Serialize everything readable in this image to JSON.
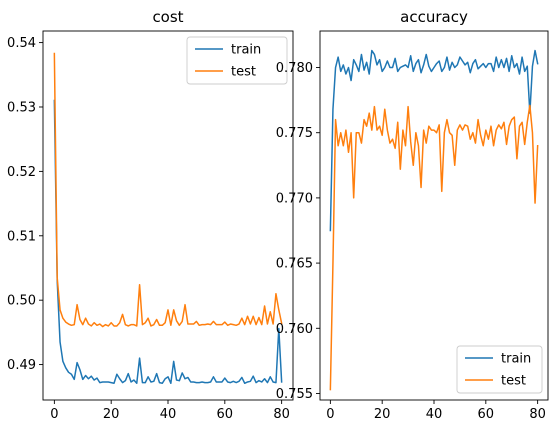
{
  "chart_data": [
    {
      "type": "line",
      "title": "cost",
      "xlabel": "",
      "ylabel": "",
      "xlim": [
        -4,
        84
      ],
      "ylim": [
        0.4845,
        0.5418
      ],
      "xticks": [
        "0",
        "20",
        "40",
        "60",
        "80"
      ],
      "yticks": [
        "0.49",
        "0.50",
        "0.51",
        "0.52",
        "0.53",
        "0.54"
      ],
      "legend": "top-right",
      "x_start": 0,
      "series": [
        {
          "name": "train",
          "color": "#1f77b4",
          "values": [
            0.531,
            0.503,
            0.4935,
            0.4905,
            0.4895,
            0.4888,
            0.4885,
            0.4877,
            0.4903,
            0.4892,
            0.4877,
            0.4883,
            0.4878,
            0.4882,
            0.4876,
            0.4879,
            0.4872,
            0.4873,
            0.4873,
            0.4873,
            0.4872,
            0.4871,
            0.4885,
            0.4878,
            0.4872,
            0.4875,
            0.4886,
            0.4873,
            0.4876,
            0.4871,
            0.491,
            0.4872,
            0.4872,
            0.4881,
            0.4873,
            0.4874,
            0.4886,
            0.4872,
            0.4871,
            0.4878,
            0.4881,
            0.4871,
            0.4905,
            0.4876,
            0.4875,
            0.4887,
            0.4878,
            0.488,
            0.4873,
            0.4873,
            0.4872,
            0.4872,
            0.4873,
            0.4872,
            0.4872,
            0.4873,
            0.4881,
            0.4873,
            0.4873,
            0.4873,
            0.4879,
            0.4873,
            0.4872,
            0.4874,
            0.4872,
            0.4874,
            0.488,
            0.4871,
            0.4873,
            0.4874,
            0.4882,
            0.4872,
            0.4875,
            0.4873,
            0.4878,
            0.4872,
            0.4881,
            0.4873,
            0.4872,
            0.4956,
            0.4873
          ]
        },
        {
          "name": "test",
          "color": "#ff7f0e",
          "values": [
            0.5383,
            0.5035,
            0.4985,
            0.4972,
            0.4966,
            0.4963,
            0.4961,
            0.4962,
            0.4993,
            0.497,
            0.4962,
            0.4972,
            0.4963,
            0.496,
            0.4965,
            0.4961,
            0.4963,
            0.4959,
            0.4962,
            0.496,
            0.4965,
            0.496,
            0.496,
            0.4965,
            0.4978,
            0.4962,
            0.496,
            0.4962,
            0.4962,
            0.496,
            0.5024,
            0.4962,
            0.4965,
            0.4972,
            0.496,
            0.4962,
            0.497,
            0.4961,
            0.4961,
            0.4965,
            0.4985,
            0.4961,
            0.4985,
            0.4968,
            0.4961,
            0.4967,
            0.4993,
            0.4963,
            0.4963,
            0.4963,
            0.4967,
            0.4961,
            0.4962,
            0.4962,
            0.4963,
            0.4962,
            0.4967,
            0.4962,
            0.4962,
            0.4962,
            0.4966,
            0.4961,
            0.4963,
            0.4962,
            0.4961,
            0.4963,
            0.4972,
            0.4962,
            0.4975,
            0.4963,
            0.4975,
            0.4962,
            0.4973,
            0.4962,
            0.4991,
            0.4963,
            0.4982,
            0.4963,
            0.501,
            0.4985,
            0.4964
          ]
        }
      ]
    },
    {
      "type": "line",
      "title": "accuracy",
      "xlabel": "",
      "ylabel": "",
      "xlim": [
        -4,
        84
      ],
      "ylim": [
        0.7545,
        0.7828
      ],
      "xticks": [
        "0",
        "20",
        "40",
        "60",
        "80"
      ],
      "yticks": [
        "0.755",
        "0.760",
        "0.765",
        "0.770",
        "0.775",
        "0.780"
      ],
      "legend": "bottom-right",
      "x_start": 0,
      "series": [
        {
          "name": "train",
          "color": "#1f77b4",
          "values": [
            0.7675,
            0.7768,
            0.78,
            0.7808,
            0.7797,
            0.7802,
            0.7795,
            0.78,
            0.779,
            0.7806,
            0.7802,
            0.7797,
            0.781,
            0.7798,
            0.7804,
            0.7795,
            0.7813,
            0.781,
            0.7802,
            0.7806,
            0.7797,
            0.78,
            0.7805,
            0.78,
            0.78,
            0.7807,
            0.7797,
            0.78,
            0.7801,
            0.7802,
            0.78,
            0.7809,
            0.7797,
            0.7803,
            0.7806,
            0.7796,
            0.7802,
            0.781,
            0.7801,
            0.7797,
            0.78,
            0.7803,
            0.7805,
            0.7797,
            0.78,
            0.7808,
            0.7798,
            0.7804,
            0.78,
            0.7802,
            0.7808,
            0.7805,
            0.7802,
            0.7804,
            0.7796,
            0.7803,
            0.7806,
            0.7799,
            0.7801,
            0.7803,
            0.78,
            0.7803,
            0.7803,
            0.7797,
            0.7808,
            0.78,
            0.7806,
            0.78,
            0.7807,
            0.7797,
            0.7809,
            0.78,
            0.7803,
            0.7795,
            0.7808,
            0.7797,
            0.7801,
            0.7765,
            0.7801,
            0.7813,
            0.7803
          ]
        },
        {
          "name": "test",
          "color": "#ff7f0e",
          "values": [
            0.7553,
            0.765,
            0.776,
            0.774,
            0.775,
            0.774,
            0.7752,
            0.7735,
            0.775,
            0.77,
            0.775,
            0.775,
            0.7742,
            0.776,
            0.7755,
            0.7765,
            0.7752,
            0.777,
            0.7752,
            0.7755,
            0.7748,
            0.7768,
            0.7752,
            0.7742,
            0.7745,
            0.7738,
            0.7758,
            0.7722,
            0.7752,
            0.774,
            0.777,
            0.7743,
            0.7725,
            0.775,
            0.774,
            0.7708,
            0.7752,
            0.7742,
            0.7755,
            0.7752,
            0.7752,
            0.775,
            0.7756,
            0.7705,
            0.775,
            0.776,
            0.775,
            0.7748,
            0.7725,
            0.7752,
            0.7756,
            0.7752,
            0.7756,
            0.7755,
            0.7745,
            0.775,
            0.7742,
            0.776,
            0.7748,
            0.774,
            0.7752,
            0.7745,
            0.7755,
            0.774,
            0.7752,
            0.7756,
            0.7753,
            0.7758,
            0.7741,
            0.7755,
            0.776,
            0.7762,
            0.773,
            0.7755,
            0.7758,
            0.7741,
            0.7758,
            0.7771,
            0.775,
            0.7696,
            0.774
          ]
        }
      ]
    }
  ]
}
